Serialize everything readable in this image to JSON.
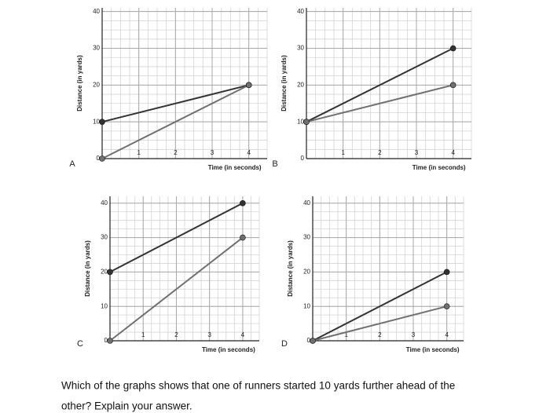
{
  "chart_data": [
    {
      "type": "line",
      "label": "A",
      "xlabel": "Time (in seconds)",
      "ylabel": "Distance (in yards)",
      "x": [
        0,
        4
      ],
      "series": [
        {
          "color": "#333333",
          "values": [
            10,
            20
          ]
        },
        {
          "color": "#707070",
          "values": [
            0,
            20
          ]
        }
      ],
      "xlim": [
        0,
        4.5
      ],
      "ylim": [
        0,
        41
      ],
      "xticks": [
        1,
        2,
        3,
        4
      ],
      "yticks": [
        0,
        10,
        20,
        30,
        40
      ],
      "grid": true,
      "minor_grid": {
        "x": 0.25,
        "y": 2.5
      }
    },
    {
      "type": "line",
      "label": "B",
      "xlabel": "Time (in seconds)",
      "ylabel": "Distance (in yards)",
      "x": [
        0,
        4
      ],
      "series": [
        {
          "color": "#333333",
          "values": [
            10,
            30
          ]
        },
        {
          "color": "#707070",
          "values": [
            10,
            20
          ]
        }
      ],
      "xlim": [
        0,
        4.5
      ],
      "ylim": [
        0,
        41
      ],
      "xticks": [
        1,
        2,
        3,
        4
      ],
      "yticks": [
        0,
        10,
        20,
        30,
        40
      ],
      "grid": true,
      "minor_grid": {
        "x": 0.25,
        "y": 2.5
      }
    },
    {
      "type": "line",
      "label": "C",
      "xlabel": "Time (in seconds)",
      "ylabel": "Distance (in yards)",
      "x": [
        0,
        4
      ],
      "series": [
        {
          "color": "#333333",
          "values": [
            20,
            40
          ]
        },
        {
          "color": "#707070",
          "values": [
            0,
            30
          ]
        }
      ],
      "xlim": [
        0,
        4.5
      ],
      "ylim": [
        0,
        42
      ],
      "xticks": [
        1,
        2,
        3,
        4
      ],
      "yticks": [
        0,
        10,
        20,
        30,
        40
      ],
      "grid": true,
      "minor_grid": {
        "x": 0.25,
        "y": 2.5
      }
    },
    {
      "type": "line",
      "label": "D",
      "xlabel": "Time (in seconds)",
      "ylabel": "Distance (in yards)",
      "x": [
        0,
        4
      ],
      "series": [
        {
          "color": "#333333",
          "values": [
            0,
            20
          ]
        },
        {
          "color": "#707070",
          "values": [
            0,
            10
          ]
        }
      ],
      "xlim": [
        0,
        4.5
      ],
      "ylim": [
        0,
        42
      ],
      "xticks": [
        1,
        2,
        3,
        4
      ],
      "yticks": [
        0,
        10,
        20,
        30,
        40
      ],
      "grid": true,
      "minor_grid": {
        "x": 0.25,
        "y": 2.5
      }
    }
  ],
  "question_lines": [
    "Which of the graphs shows that one of runners started 10 yards further ahead of the",
    "other?  Explain your answer."
  ]
}
